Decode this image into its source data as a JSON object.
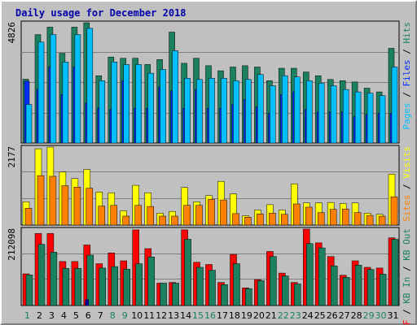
{
  "chart_data": {
    "type": "bar",
    "title": "Daily usage for December 2018",
    "days": [
      "1",
      "2",
      "3",
      "4",
      "5",
      "6",
      "7",
      "8",
      "9",
      "10",
      "11",
      "12",
      "13",
      "14",
      "15",
      "16",
      "17",
      "18",
      "19",
      "20",
      "21",
      "22",
      "23",
      "24",
      "25",
      "26",
      "27",
      "28",
      "29",
      "30",
      "31"
    ],
    "weekend_days": [
      1,
      8,
      9,
      15,
      16,
      22,
      23,
      29,
      30
    ],
    "colors": {
      "hits": "#1a8060",
      "files": "#00bfff",
      "pages": "#0030ff",
      "visits": "#ffff00",
      "sites": "#ff8000",
      "kb_in": "#1a8060",
      "kb_out": "#1a8060",
      "kb_f": "#ff0000",
      "weekday_label": "#000000",
      "weekend_label": "#1a8060"
    },
    "panels": [
      {
        "name": "hits-files-pages",
        "max_label": "4826",
        "max": 4826,
        "legend": [
          {
            "text": "Pages",
            "color": "#00bfff"
          },
          {
            "text": " / ",
            "color": "#000000"
          },
          {
            "text": "Files",
            "color": "#0030ff"
          },
          {
            "text": " / ",
            "color": "#000000"
          },
          {
            "text": "Hits",
            "color": "#1a8060"
          }
        ],
        "series": [
          {
            "name": "Hits",
            "color": "#1a8060",
            "values": [
              2560,
              4350,
              4650,
              3600,
              4650,
              4826,
              2700,
              3450,
              3400,
              3400,
              3150,
              3350,
              4450,
              3200,
              3400,
              3100,
              2900,
              3050,
              3100,
              3050,
              2500,
              3000,
              3000,
              2850,
              2700,
              2550,
              2500,
              2450,
              2200,
              2050,
              3800
            ]
          },
          {
            "name": "Pages",
            "color": "#0030ff",
            "values": [
              2480,
              2150,
              3050,
              1950,
              3050,
              1600,
              1400,
              1350,
              2500,
              1400,
              1400,
              2250,
              2100,
              1400,
              2150,
              1400,
              1400,
              1550,
              1750,
              1450,
              1200,
              1950,
              2050,
              1350,
              1250,
              1250,
              1250,
              1050,
              1150,
              1200,
              1200
            ]
          },
          {
            "name": "Files",
            "color": "#00bfff",
            "values": [
              1550,
              4050,
              4350,
              3250,
              4350,
              4600,
              2500,
              3250,
              3150,
              3150,
              2800,
              2950,
              3700,
              2600,
              2550,
              2600,
              2600,
              2500,
              2550,
              2750,
              2300,
              2700,
              2650,
              2500,
              2400,
              2300,
              2150,
              2050,
              2000,
              1900,
              3050
            ]
          }
        ]
      },
      {
        "name": "visits-sites",
        "max_label": "2177",
        "max": 2177,
        "legend": [
          {
            "text": "Sites",
            "color": "#ff8000"
          },
          {
            "text": " / ",
            "color": "#000000"
          },
          {
            "text": "Visits",
            "color": "#ffff00"
          }
        ],
        "series": [
          {
            "name": "Visits",
            "color": "#ffff00",
            "values": [
              650,
              2130,
              2177,
              1480,
              1300,
              1550,
              920,
              900,
              400,
              1110,
              900,
              330,
              380,
              1050,
              650,
              820,
              1220,
              870,
              260,
              420,
              570,
              420,
              1150,
              620,
              620,
              630,
              600,
              620,
              330,
              300,
              1420
            ]
          },
          {
            "name": "Sites",
            "color": "#ff8000",
            "values": [
              470,
              1380,
              1360,
              1100,
              1060,
              1030,
              530,
              550,
              250,
              550,
              520,
              250,
              250,
              550,
              550,
              720,
              700,
              320,
              220,
              310,
              330,
              300,
              590,
              500,
              350,
              440,
              450,
              350,
              270,
              250,
              790
            ]
          }
        ]
      },
      {
        "name": "kbytes",
        "max_label": "212098",
        "max": 212098,
        "legend": [
          {
            "text": "KB F",
            "color": "#ff0000"
          },
          {
            "text": " / ",
            "color": "#000000"
          },
          {
            "text": "KB In",
            "color": "#1a8060"
          },
          {
            "text": " / ",
            "color": "#000000"
          },
          {
            "text": "KB Out",
            "color": "#1a8060"
          }
        ],
        "series": [
          {
            "name": "KB F",
            "color": "#ff0000",
            "values": [
              88000,
              200000,
              200000,
              122000,
              122000,
              168000,
              116000,
              146000,
              124000,
              210000,
              158000,
              62000,
              64000,
              210000,
              120000,
              114000,
              64000,
              142000,
              49000,
              72000,
              150000,
              90000,
              64000,
              212098,
              174000,
              136000,
              84000,
              124000,
              106000,
              104000,
              188000
            ]
          },
          {
            "name": "KB In",
            "color": "#1a8060",
            "values": [
              85000,
              170000,
              148000,
              103000,
              103000,
              140000,
              104000,
              108000,
              101000,
              116000,
              135000,
              62000,
              62000,
              184000,
              106000,
              98000,
              58000,
              116000,
              47000,
              69000,
              136000,
              82000,
              60000,
              172000,
              160000,
              110000,
              78000,
              112000,
              100000,
              87000,
              184000
            ]
          },
          {
            "name": "KB Out",
            "color": "#0000aa",
            "values": [
              0,
              0,
              0,
              0,
              0,
              16000,
              0,
              0,
              0,
              0,
              0,
              0,
              0,
              0,
              0,
              0,
              0,
              0,
              0,
              0,
              0,
              0,
              0,
              0,
              0,
              0,
              0,
              0,
              0,
              0,
              0
            ]
          }
        ]
      }
    ]
  }
}
